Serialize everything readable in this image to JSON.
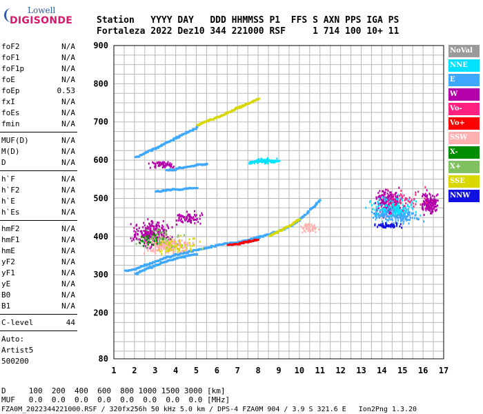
{
  "logo": {
    "top": "Lowell",
    "bottom": "DIGISONDE"
  },
  "header": {
    "line1": "Station   YYYY DAY   DDD HHMMSS P1  FFS S AXN PPS IGA PS",
    "line2": "Fortaleza 2022 Dez10 344 221000 RSF     1 714 100 10+ 11"
  },
  "params": {
    "group1": [
      {
        "name": "foF2",
        "value": "N/A"
      },
      {
        "name": "foF1",
        "value": "N/A"
      },
      {
        "name": "foF1p",
        "value": "N/A"
      },
      {
        "name": "foE",
        "value": "N/A"
      },
      {
        "name": "foEp",
        "value": "0.53"
      },
      {
        "name": "fxI",
        "value": "N/A"
      },
      {
        "name": "foEs",
        "value": "N/A"
      },
      {
        "name": "fmin",
        "value": "N/A"
      }
    ],
    "group2": [
      {
        "name": "MUF(D)",
        "value": "N/A"
      },
      {
        "name": "M(D)",
        "value": "N/A"
      },
      {
        "name": "D",
        "value": "N/A"
      }
    ],
    "group3": [
      {
        "name": "h`F",
        "value": "N/A"
      },
      {
        "name": "h`F2",
        "value": "N/A"
      },
      {
        "name": "h`E",
        "value": "N/A"
      },
      {
        "name": "h`Es",
        "value": "N/A"
      }
    ],
    "group4": [
      {
        "name": "hmF2",
        "value": "N/A"
      },
      {
        "name": "hmF1",
        "value": "N/A"
      },
      {
        "name": "hmE",
        "value": "N/A"
      },
      {
        "name": "yF2",
        "value": "N/A"
      },
      {
        "name": "yF1",
        "value": "N/A"
      },
      {
        "name": "yE",
        "value": "N/A"
      },
      {
        "name": "B0",
        "value": "N/A"
      },
      {
        "name": "B1",
        "value": "N/A"
      }
    ],
    "clevel": {
      "name": "C-level",
      "value": "44"
    },
    "auto": [
      "Auto:",
      "Artist5",
      "500200"
    ]
  },
  "legend": [
    {
      "label": "NoVal",
      "color": "#9a9a9a"
    },
    {
      "label": "NNE",
      "color": "#00e0ff"
    },
    {
      "label": "E",
      "color": "#3ea8ff"
    },
    {
      "label": "W",
      "color": "#b400a8"
    },
    {
      "label": "Vo-",
      "color": "#ff2080"
    },
    {
      "label": "Vo+",
      "color": "#ff0000"
    },
    {
      "label": "SSW",
      "color": "#ffb0b0"
    },
    {
      "label": "X-",
      "color": "#008c00"
    },
    {
      "label": "X+",
      "color": "#80c060"
    },
    {
      "label": "SSE",
      "color": "#d8d800"
    },
    {
      "label": "NNW",
      "color": "#1010e0"
    }
  ],
  "footer": {
    "line1": "D     100  200  400  600  800 1000 1500 3000 [km]",
    "line2": "MUF   0.0  0.0  0.0  0.0  0.0  0.0  0.0  0.0 [MHz]",
    "line3": "FZA0M_2022344221000.RSF / 320fx256h 50 kHz 5.0 km / DPS-4 FZA0M 904 / 3.9 S 321.6 E   Ion2Png 1.3.20"
  },
  "chart_data": {
    "type": "scatter",
    "xlim": [
      1,
      17
    ],
    "ylim": [
      80,
      900
    ],
    "x_ticks": [
      1,
      2,
      3,
      4,
      5,
      6,
      7,
      8,
      9,
      10,
      11,
      12,
      13,
      14,
      15,
      16,
      17
    ],
    "y_ticks": [
      80,
      200,
      300,
      400,
      500,
      600,
      700,
      800,
      900
    ],
    "grid": true,
    "clusters": [
      {
        "label": "E",
        "color": "#3ea8ff",
        "kind": "trace",
        "points": [
          [
            1.5,
            312
          ],
          [
            2,
            318
          ],
          [
            2.5,
            328
          ],
          [
            3,
            338
          ],
          [
            3.5,
            348
          ],
          [
            4,
            356
          ],
          [
            4.5,
            362
          ],
          [
            5,
            368
          ],
          [
            5.5,
            374
          ],
          [
            6,
            380
          ],
          [
            6.5,
            384
          ],
          [
            7,
            388
          ],
          [
            7.5,
            395
          ],
          [
            8,
            402
          ],
          [
            8.5,
            410
          ],
          [
            9,
            418
          ],
          [
            9.5,
            430
          ],
          [
            10,
            448
          ],
          [
            10.5,
            475
          ],
          [
            11,
            500
          ]
        ]
      },
      {
        "label": "E",
        "color": "#3ea8ff",
        "kind": "trace",
        "points": [
          [
            2,
            305
          ],
          [
            2.5,
            318
          ],
          [
            3,
            328
          ],
          [
            3.5,
            338
          ],
          [
            4,
            346
          ],
          [
            4.5,
            352
          ],
          [
            5,
            358
          ]
        ]
      },
      {
        "label": "E",
        "color": "#3ea8ff",
        "kind": "trace",
        "points": [
          [
            2,
            610
          ],
          [
            2.5,
            622
          ],
          [
            3,
            635
          ],
          [
            3.5,
            648
          ],
          [
            4,
            662
          ],
          [
            4.5,
            676
          ],
          [
            5,
            688
          ]
        ]
      },
      {
        "label": "E",
        "color": "#3ea8ff",
        "kind": "trace",
        "points": [
          [
            3,
            520
          ],
          [
            3.5,
            524
          ],
          [
            4,
            526
          ],
          [
            4.5,
            528
          ],
          [
            5,
            530
          ]
        ]
      },
      {
        "label": "E",
        "color": "#3ea8ff",
        "kind": "trace",
        "points": [
          [
            3.5,
            575
          ],
          [
            4,
            580
          ],
          [
            4.5,
            585
          ],
          [
            5,
            590
          ],
          [
            5.5,
            592
          ]
        ]
      },
      {
        "label": "SSE",
        "color": "#d8d800",
        "kind": "trace",
        "points": [
          [
            5,
            695
          ],
          [
            5.5,
            705
          ],
          [
            6,
            715
          ],
          [
            6.5,
            728
          ],
          [
            7,
            740
          ],
          [
            7.5,
            752
          ],
          [
            8,
            765
          ]
        ]
      },
      {
        "label": "NNE",
        "color": "#00e0ff",
        "kind": "trace",
        "points": [
          [
            7.5,
            595
          ],
          [
            8,
            600
          ],
          [
            8.5,
            602
          ],
          [
            9,
            600
          ]
        ]
      },
      {
        "label": "Vo+",
        "color": "#ff0000",
        "kind": "trace",
        "points": [
          [
            6.5,
            380
          ],
          [
            7,
            384
          ],
          [
            7.5,
            390
          ],
          [
            8,
            395
          ]
        ]
      },
      {
        "label": "SSE",
        "color": "#d8d800",
        "kind": "trace",
        "points": [
          [
            8.5,
            405
          ],
          [
            9,
            418
          ],
          [
            9.5,
            432
          ],
          [
            10,
            450
          ]
        ]
      },
      {
        "label": "W",
        "color": "#b400a8",
        "kind": "cloud",
        "cx": 2.8,
        "cy": 410,
        "dx": 1.2,
        "dy": 45,
        "n": 260
      },
      {
        "label": "SSW",
        "color": "#ffb0b0",
        "kind": "cloud",
        "cx": 3.6,
        "cy": 380,
        "dx": 1.5,
        "dy": 30,
        "n": 220
      },
      {
        "label": "X+",
        "color": "#80c060",
        "kind": "cloud",
        "cx": 3.2,
        "cy": 395,
        "dx": 1.5,
        "dy": 35,
        "n": 60
      },
      {
        "label": "SSE",
        "color": "#d8d800",
        "kind": "cloud",
        "cx": 4.0,
        "cy": 385,
        "dx": 1.5,
        "dy": 35,
        "n": 60
      },
      {
        "label": "X-",
        "color": "#008c00",
        "kind": "cloud",
        "cx": 2.6,
        "cy": 395,
        "dx": 0.9,
        "dy": 25,
        "n": 25
      },
      {
        "label": "W",
        "color": "#b400a8",
        "kind": "cloud",
        "cx": 3.4,
        "cy": 590,
        "dx": 0.9,
        "dy": 14,
        "n": 60
      },
      {
        "label": "W",
        "color": "#b400a8",
        "kind": "cloud",
        "cx": 4.5,
        "cy": 450,
        "dx": 1.0,
        "dy": 22,
        "n": 70
      },
      {
        "label": "NNE",
        "color": "#00e0ff",
        "kind": "cloud",
        "cx": 8.3,
        "cy": 600,
        "dx": 0.7,
        "dy": 10,
        "n": 70
      },
      {
        "label": "SSW",
        "color": "#ffb0b0",
        "kind": "cloud",
        "cx": 10.5,
        "cy": 425,
        "dx": 0.6,
        "dy": 15,
        "n": 50
      },
      {
        "label": "W",
        "color": "#b400a8",
        "kind": "cloud",
        "cx": 14.3,
        "cy": 490,
        "dx": 0.8,
        "dy": 50,
        "n": 220
      },
      {
        "label": "W",
        "color": "#b400a8",
        "kind": "cloud",
        "cx": 16.3,
        "cy": 490,
        "dx": 0.6,
        "dy": 40,
        "n": 140
      },
      {
        "label": "E",
        "color": "#3ea8ff",
        "kind": "cloud",
        "cx": 14.6,
        "cy": 460,
        "dx": 1.6,
        "dy": 30,
        "n": 200
      },
      {
        "label": "NNW",
        "color": "#1010e0",
        "kind": "cloud",
        "cx": 14.2,
        "cy": 432,
        "dx": 1.0,
        "dy": 10,
        "n": 60
      },
      {
        "label": "NNE",
        "color": "#00e0ff",
        "kind": "cloud",
        "cx": 14.5,
        "cy": 480,
        "dx": 1.5,
        "dy": 35,
        "n": 120
      },
      {
        "label": "Vo-",
        "color": "#ff2080",
        "kind": "cloud",
        "cx": 15.0,
        "cy": 500,
        "dx": 1.5,
        "dy": 40,
        "n": 45
      }
    ]
  }
}
